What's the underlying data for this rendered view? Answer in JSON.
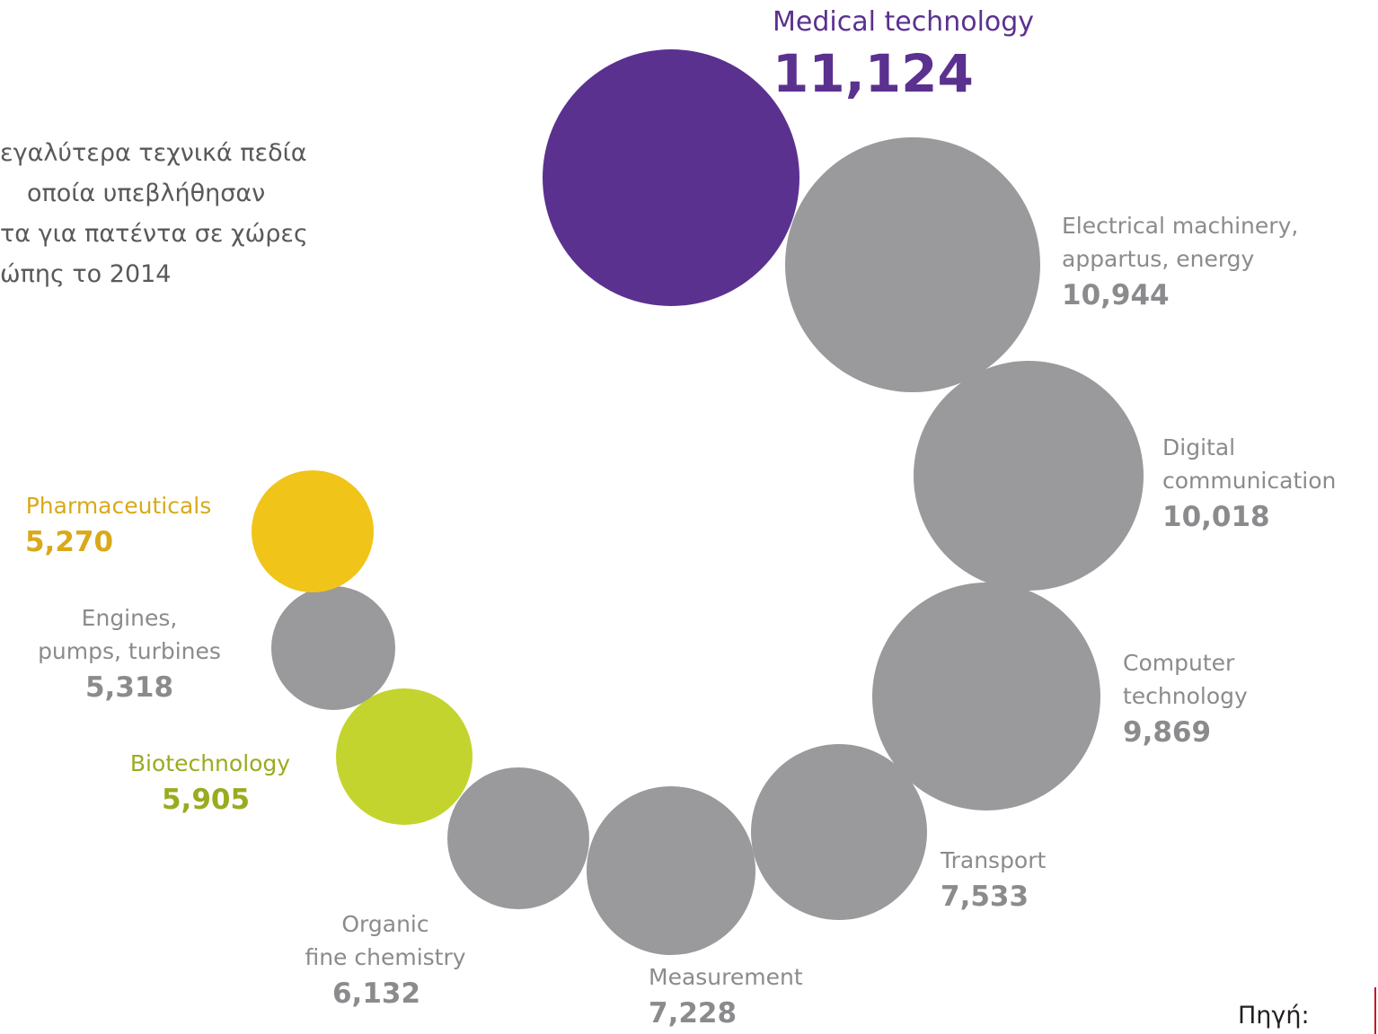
{
  "heading_lines": [
    "εγαλύτερα τεχνικά πεδία",
    "οποία υπεβλήθησαν",
    "τα για πατέντα σε χώρες",
    "ώπης το 2014"
  ],
  "source_label": "Πηγή:",
  "colors": {
    "gray": "#9a999c",
    "gray_text": "#8b8b8e",
    "purple": "#5b318f",
    "yellow": "#f0c419",
    "yellow_text": "#d9a91a",
    "green": "#c3d42f",
    "green_text": "#9aab1f",
    "edge_accent": "#c0162c"
  },
  "chart_data": {
    "type": "bubble",
    "title": "",
    "series": [
      {
        "name": "Medical technology",
        "name_lines": [
          "Medical technology"
        ],
        "value_label": "11,124",
        "value": 11124,
        "color": "purple"
      },
      {
        "name": "Electrical machinery, appartus, energy",
        "name_lines": [
          "Electrical machinery,",
          "appartus, energy"
        ],
        "value_label": "10,944",
        "value": 10944,
        "color": "gray"
      },
      {
        "name": "Digital communication",
        "name_lines": [
          "Digital",
          "communication"
        ],
        "value_label": "10,018",
        "value": 10018,
        "color": "gray"
      },
      {
        "name": "Computer technology",
        "name_lines": [
          "Computer",
          "technology"
        ],
        "value_label": "9,869",
        "value": 9869,
        "color": "gray"
      },
      {
        "name": "Transport",
        "name_lines": [
          "Transport"
        ],
        "value_label": "7,533",
        "value": 7533,
        "color": "gray"
      },
      {
        "name": "Measurement",
        "name_lines": [
          "Measurement"
        ],
        "value_label": "7,228",
        "value": 7228,
        "color": "gray"
      },
      {
        "name": "Organic fine chemistry",
        "name_lines": [
          "Organic",
          "fine chemistry"
        ],
        "value_label": "6,132",
        "value": 6132,
        "color": "gray"
      },
      {
        "name": "Biotechnology",
        "name_lines": [
          "Biotechnology"
        ],
        "value_label": "5,905",
        "value": 5905,
        "color": "green"
      },
      {
        "name": "Engines, pumps, turbines",
        "name_lines": [
          "Engines,",
          "pumps, turbines"
        ],
        "value_label": "5,318",
        "value": 5318,
        "color": "gray"
      },
      {
        "name": "Pharmaceuticals",
        "name_lines": [
          "Pharmaceuticals"
        ],
        "value_label": "5,270",
        "value": 5270,
        "color": "yellow"
      }
    ]
  }
}
